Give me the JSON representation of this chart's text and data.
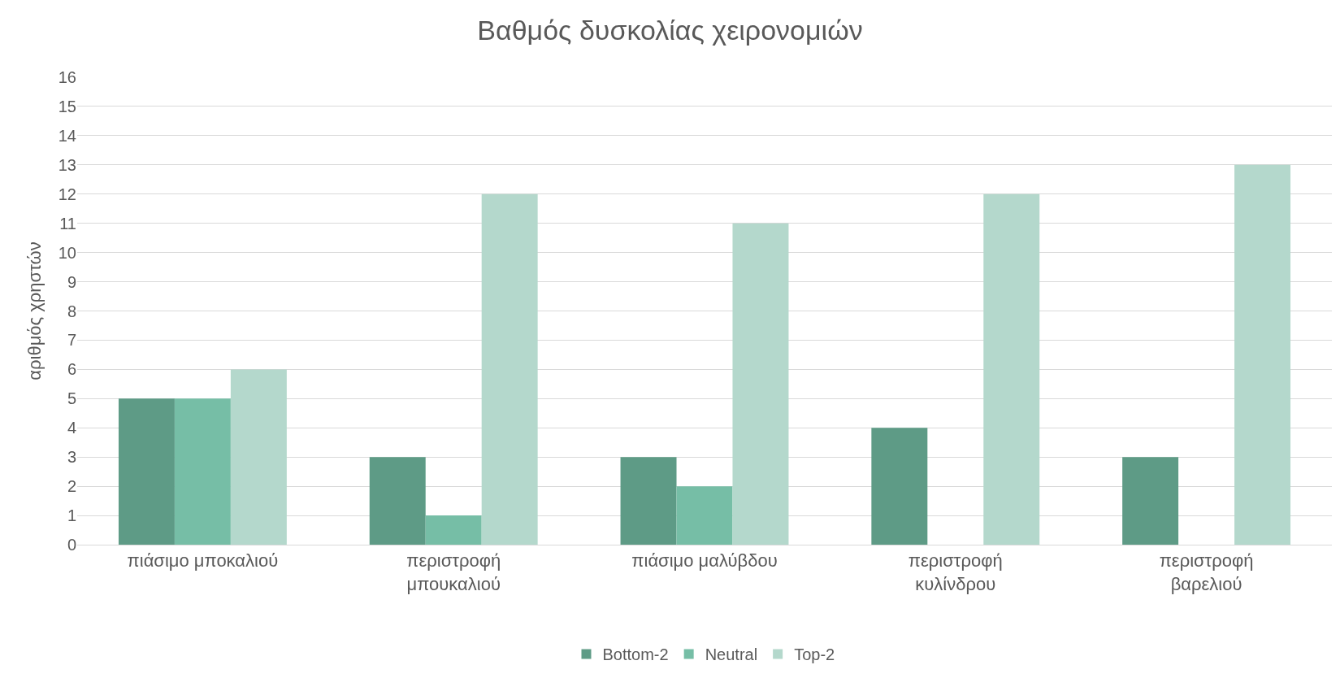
{
  "chart_data": {
    "type": "bar",
    "title": "Βαθμός δυσκολίας χειρονομιών",
    "ylabel": "αριθμός χρηστών",
    "categories": [
      "πιάσιμο μποκαλιού",
      "περιστροφή μπουκαλιού",
      "πιάσιμο μαλύβδου",
      "περιστροφή κυλίνδρου",
      "περιστροφή βαρελιού"
    ],
    "series": [
      {
        "name": "Bottom-2",
        "color": "#5e9b86",
        "values": [
          5,
          3,
          3,
          4,
          3
        ]
      },
      {
        "name": "Neutral",
        "color": "#76bea6",
        "values": [
          5,
          1,
          2,
          0,
          0
        ]
      },
      {
        "name": "Top-2",
        "color": "#b4d8cc",
        "values": [
          6,
          12,
          11,
          12,
          13
        ]
      }
    ],
    "ylim": [
      0,
      16
    ],
    "yticks": [
      0,
      1,
      2,
      3,
      4,
      5,
      6,
      7,
      8,
      9,
      10,
      11,
      12,
      13,
      14,
      15,
      16
    ],
    "grid": "y",
    "legend": "bottom"
  }
}
